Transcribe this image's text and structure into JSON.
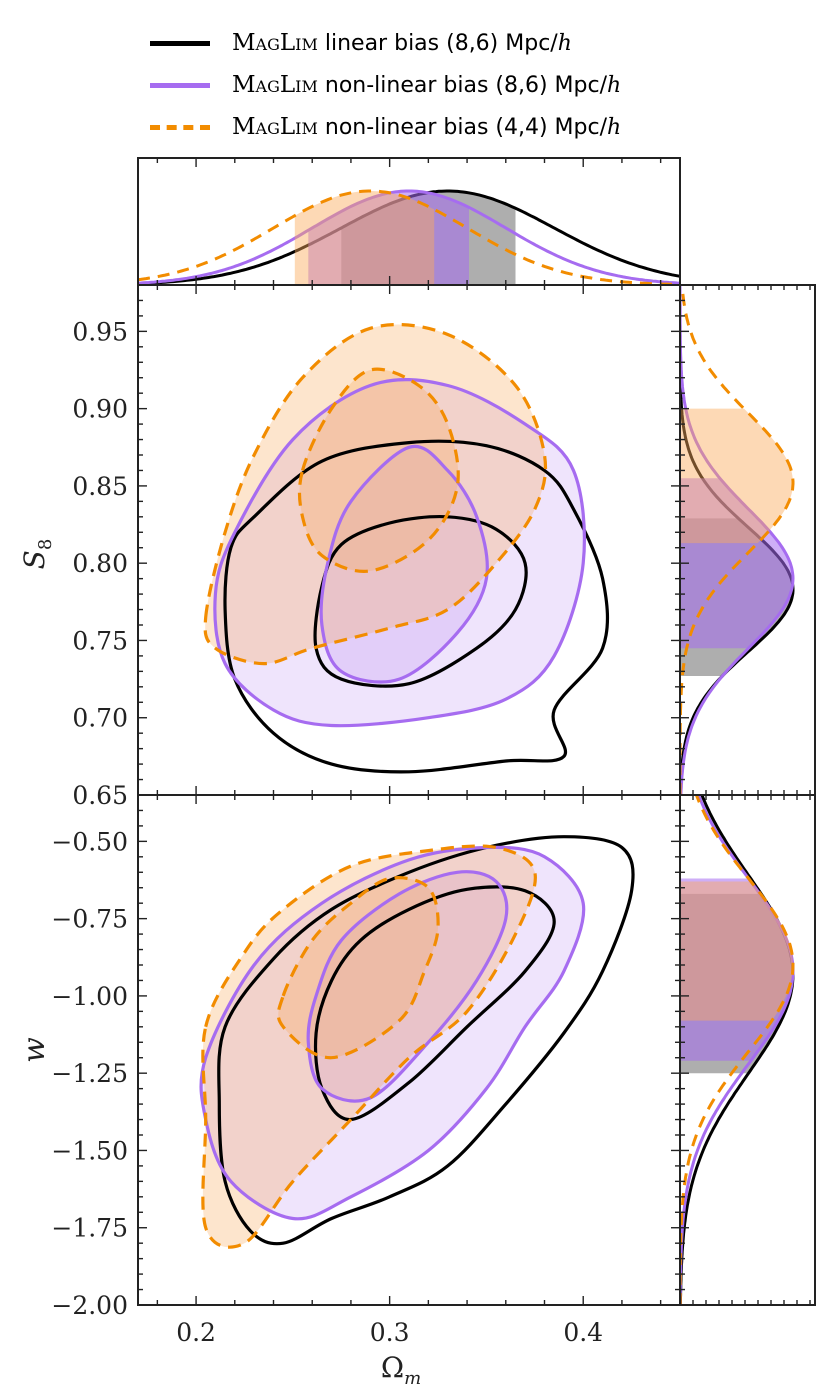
{
  "chart_data": {
    "type": "contour",
    "title": "",
    "legend": {
      "placement": "top-left",
      "entries": [
        {
          "name_sc": "MagLim",
          "text": "linear bias (8,6)",
          "unit_text": "Mpc/",
          "unit_math": "h",
          "color": "#000000",
          "style": "solid"
        },
        {
          "name_sc": "MagLim",
          "text": "non-linear bias (8,6)",
          "unit_text": "Mpc/",
          "unit_math": "h",
          "color": "#a66cf0",
          "style": "solid"
        },
        {
          "name_sc": "MagLim",
          "text": "non-linear bias (4,4)",
          "unit_text": "Mpc/",
          "unit_math": "h",
          "color": "#f28c00",
          "style": "dashed"
        }
      ]
    },
    "axes": {
      "omega_m": {
        "label": "Ω",
        "label_sub": "m",
        "range": [
          0.17,
          0.45
        ],
        "ticks": [
          0.2,
          0.3,
          0.4
        ],
        "tick_labels": [
          "0.2",
          "0.3",
          "0.4"
        ]
      },
      "s8": {
        "label": "S",
        "label_sub": "8",
        "range": [
          0.65,
          0.98
        ],
        "ticks": [
          0.65,
          0.7,
          0.75,
          0.8,
          0.85,
          0.9,
          0.95
        ],
        "tick_labels": [
          "0.65",
          "0.70",
          "0.75",
          "0.80",
          "0.85",
          "0.90",
          "0.95"
        ]
      },
      "w": {
        "label": "w",
        "range": [
          -2.0,
          -0.35
        ],
        "ticks": [
          -2.0,
          -1.75,
          -1.5,
          -1.25,
          -1.0,
          -0.75,
          -0.5
        ],
        "tick_labels": [
          "−2.00",
          "−1.75",
          "−1.50",
          "−1.25",
          "−1.00",
          "−0.75",
          "−0.50"
        ]
      }
    },
    "series": [
      {
        "name": "MagLim linear bias (8,6) Mpc/h",
        "color": "#000000",
        "fill": "#777777",
        "dashed": false,
        "filled_2d": false,
        "omega_m_1d": {
          "mean": 0.33,
          "sigma": 0.055,
          "lo68": 0.275,
          "hi68": 0.365
        },
        "s8_1d": {
          "mean": 0.783,
          "sigma": 0.04,
          "lo68": 0.727,
          "hi68": 0.829
        },
        "w_1d": {
          "mean": -0.93,
          "sigma": 0.32,
          "lo68": -1.25,
          "hi68": -0.67
        },
        "s8_68": [
          [
            0.3,
            0.826
          ],
          [
            0.33,
            0.83
          ],
          [
            0.355,
            0.822
          ],
          [
            0.37,
            0.8
          ],
          [
            0.365,
            0.77
          ],
          [
            0.345,
            0.745
          ],
          [
            0.31,
            0.722
          ],
          [
            0.275,
            0.725
          ],
          [
            0.262,
            0.745
          ],
          [
            0.265,
            0.785
          ],
          [
            0.275,
            0.812
          ]
        ],
        "s8_95": [
          [
            0.23,
            0.83
          ],
          [
            0.265,
            0.866
          ],
          [
            0.31,
            0.878
          ],
          [
            0.35,
            0.876
          ],
          [
            0.38,
            0.86
          ],
          [
            0.395,
            0.835
          ],
          [
            0.41,
            0.79
          ],
          [
            0.41,
            0.745
          ],
          [
            0.385,
            0.705
          ],
          [
            0.39,
            0.675
          ],
          [
            0.36,
            0.672
          ],
          [
            0.31,
            0.665
          ],
          [
            0.27,
            0.67
          ],
          [
            0.24,
            0.69
          ],
          [
            0.22,
            0.725
          ],
          [
            0.215,
            0.77
          ],
          [
            0.218,
            0.81
          ]
        ],
        "w_68": [
          [
            0.27,
            -0.95
          ],
          [
            0.285,
            -0.82
          ],
          [
            0.31,
            -0.72
          ],
          [
            0.34,
            -0.655
          ],
          [
            0.37,
            -0.66
          ],
          [
            0.385,
            -0.76
          ],
          [
            0.37,
            -0.92
          ],
          [
            0.34,
            -1.1
          ],
          [
            0.31,
            -1.28
          ],
          [
            0.28,
            -1.4
          ],
          [
            0.265,
            -1.3
          ],
          [
            0.262,
            -1.12
          ]
        ],
        "w_95": [
          [
            0.215,
            -1.1
          ],
          [
            0.24,
            -0.88
          ],
          [
            0.27,
            -0.72
          ],
          [
            0.31,
            -0.6
          ],
          [
            0.35,
            -0.52
          ],
          [
            0.39,
            -0.485
          ],
          [
            0.42,
            -0.52
          ],
          [
            0.425,
            -0.66
          ],
          [
            0.41,
            -0.92
          ],
          [
            0.39,
            -1.12
          ],
          [
            0.36,
            -1.35
          ],
          [
            0.33,
            -1.55
          ],
          [
            0.3,
            -1.65
          ],
          [
            0.27,
            -1.72
          ],
          [
            0.245,
            -1.8
          ],
          [
            0.228,
            -1.76
          ],
          [
            0.215,
            -1.6
          ],
          [
            0.212,
            -1.35
          ]
        ]
      },
      {
        "name": "MagLim non-linear bias (8,6) Mpc/h",
        "color": "#a66cf0",
        "fill": "rgba(166,108,240,0.18)",
        "dashed": false,
        "filled_2d": true,
        "omega_m_1d": {
          "mean": 0.31,
          "sigma": 0.05,
          "lo68": 0.258,
          "hi68": 0.341
        },
        "s8_1d": {
          "mean": 0.79,
          "sigma": 0.045,
          "lo68": 0.745,
          "hi68": 0.855
        },
        "w_1d": {
          "mean": -0.92,
          "sigma": 0.3,
          "lo68": -1.21,
          "hi68": -0.62
        },
        "s8_68": [
          [
            0.28,
            0.84
          ],
          [
            0.31,
            0.875
          ],
          [
            0.33,
            0.86
          ],
          [
            0.345,
            0.83
          ],
          [
            0.35,
            0.79
          ],
          [
            0.335,
            0.755
          ],
          [
            0.305,
            0.725
          ],
          [
            0.275,
            0.73
          ],
          [
            0.265,
            0.76
          ],
          [
            0.268,
            0.8
          ]
        ],
        "s8_95": [
          [
            0.22,
            0.82
          ],
          [
            0.25,
            0.88
          ],
          [
            0.29,
            0.915
          ],
          [
            0.33,
            0.915
          ],
          [
            0.37,
            0.89
          ],
          [
            0.395,
            0.86
          ],
          [
            0.4,
            0.8
          ],
          [
            0.385,
            0.74
          ],
          [
            0.36,
            0.712
          ],
          [
            0.32,
            0.7
          ],
          [
            0.27,
            0.695
          ],
          [
            0.24,
            0.705
          ],
          [
            0.215,
            0.735
          ],
          [
            0.21,
            0.78
          ]
        ],
        "w_68": [
          [
            0.262,
            -1.0
          ],
          [
            0.275,
            -0.82
          ],
          [
            0.305,
            -0.67
          ],
          [
            0.335,
            -0.6
          ],
          [
            0.355,
            -0.63
          ],
          [
            0.36,
            -0.75
          ],
          [
            0.345,
            -0.95
          ],
          [
            0.32,
            -1.15
          ],
          [
            0.29,
            -1.33
          ],
          [
            0.265,
            -1.3
          ],
          [
            0.258,
            -1.15
          ]
        ],
        "w_95": [
          [
            0.205,
            -1.2
          ],
          [
            0.23,
            -0.9
          ],
          [
            0.265,
            -0.7
          ],
          [
            0.31,
            -0.56
          ],
          [
            0.35,
            -0.52
          ],
          [
            0.38,
            -0.55
          ],
          [
            0.4,
            -0.7
          ],
          [
            0.39,
            -0.92
          ],
          [
            0.37,
            -1.1
          ],
          [
            0.35,
            -1.3
          ],
          [
            0.32,
            -1.5
          ],
          [
            0.28,
            -1.65
          ],
          [
            0.25,
            -1.72
          ],
          [
            0.218,
            -1.6
          ],
          [
            0.205,
            -1.4
          ]
        ]
      },
      {
        "name": "MagLim non-linear bias (4,4) Mpc/h",
        "color": "#f28c00",
        "fill": "rgba(250,170,90,0.30)",
        "dashed": true,
        "filled_2d": true,
        "omega_m_1d": {
          "mean": 0.29,
          "sigma": 0.05,
          "lo68": 0.251,
          "hi68": 0.323
        },
        "s8_1d": {
          "mean": 0.852,
          "sigma": 0.045,
          "lo68": 0.813,
          "hi68": 0.9
        },
        "w_1d": {
          "mean": -0.9,
          "sigma": 0.28,
          "lo68": -1.08,
          "hi68": -0.63
        },
        "s8_68": [
          [
            0.255,
            0.86
          ],
          [
            0.27,
            0.9
          ],
          [
            0.29,
            0.925
          ],
          [
            0.315,
            0.915
          ],
          [
            0.33,
            0.89
          ],
          [
            0.335,
            0.85
          ],
          [
            0.32,
            0.815
          ],
          [
            0.29,
            0.795
          ],
          [
            0.265,
            0.805
          ],
          [
            0.255,
            0.83
          ]
        ],
        "s8_95": [
          [
            0.205,
            0.765
          ],
          [
            0.215,
            0.82
          ],
          [
            0.23,
            0.87
          ],
          [
            0.255,
            0.92
          ],
          [
            0.29,
            0.952
          ],
          [
            0.33,
            0.948
          ],
          [
            0.365,
            0.915
          ],
          [
            0.38,
            0.87
          ],
          [
            0.375,
            0.835
          ],
          [
            0.355,
            0.8
          ],
          [
            0.33,
            0.77
          ],
          [
            0.3,
            0.758
          ],
          [
            0.26,
            0.745
          ],
          [
            0.235,
            0.735
          ],
          [
            0.21,
            0.745
          ]
        ],
        "w_68": [
          [
            0.245,
            -1.0
          ],
          [
            0.26,
            -0.82
          ],
          [
            0.28,
            -0.7
          ],
          [
            0.3,
            -0.62
          ],
          [
            0.32,
            -0.65
          ],
          [
            0.325,
            -0.78
          ],
          [
            0.318,
            -0.92
          ],
          [
            0.305,
            -1.08
          ],
          [
            0.27,
            -1.2
          ],
          [
            0.245,
            -1.1
          ]
        ],
        "w_95": [
          [
            0.205,
            -1.1
          ],
          [
            0.225,
            -0.86
          ],
          [
            0.245,
            -0.72
          ],
          [
            0.28,
            -0.58
          ],
          [
            0.32,
            -0.53
          ],
          [
            0.355,
            -0.52
          ],
          [
            0.375,
            -0.6
          ],
          [
            0.365,
            -0.8
          ],
          [
            0.34,
            -1.05
          ],
          [
            0.31,
            -1.2
          ],
          [
            0.28,
            -1.4
          ],
          [
            0.25,
            -1.6
          ],
          [
            0.225,
            -1.8
          ],
          [
            0.205,
            -1.75
          ],
          [
            0.205,
            -1.4
          ]
        ]
      }
    ]
  }
}
